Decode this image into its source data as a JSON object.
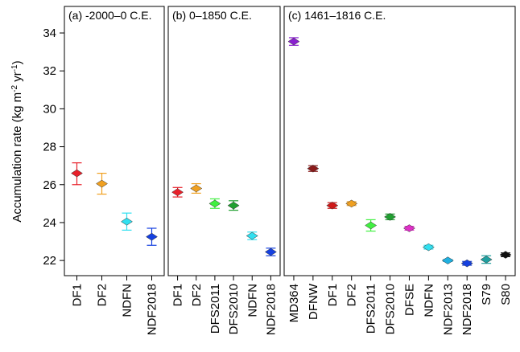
{
  "y_axis_label": {
    "main": "Accumulation rate (kg m",
    "sup1": "-2",
    "mid": " yr",
    "sup2": "-1",
    "end": ")"
  },
  "chart_data": [
    {
      "type": "errorbar",
      "title": "(a) -2000–0 C.E.",
      "ylim": [
        21.2,
        35.4
      ],
      "yticks": [
        22,
        24,
        26,
        28,
        30,
        32,
        34
      ],
      "categories": [
        "DF1",
        "DF2",
        "NDFN",
        "NDF2018"
      ],
      "values": [
        26.6,
        26.05,
        24.05,
        23.25
      ],
      "lower": [
        26.0,
        25.5,
        23.6,
        22.8
      ],
      "upper": [
        27.15,
        26.6,
        24.5,
        23.7
      ],
      "colors": [
        "#e8202a",
        "#f0a020",
        "#30e0f0",
        "#1540e0"
      ]
    },
    {
      "type": "errorbar",
      "title": "(b)  0–1850 C.E.",
      "ylim": [
        21.2,
        35.4
      ],
      "categories": [
        "DF1",
        "DF2",
        "DFS2011",
        "DFS2010",
        "NDFN",
        "NDF2018"
      ],
      "values": [
        25.6,
        25.8,
        25.0,
        24.9,
        23.3,
        22.45
      ],
      "lower": [
        25.35,
        25.55,
        24.75,
        24.65,
        23.1,
        22.25
      ],
      "upper": [
        25.85,
        26.05,
        25.25,
        25.15,
        23.5,
        22.65
      ],
      "colors": [
        "#e8202a",
        "#f0a020",
        "#40f040",
        "#20a030",
        "#30e0f0",
        "#1540e0"
      ]
    },
    {
      "type": "errorbar",
      "title": "(c) 1461–1816 C.E.",
      "ylim": [
        21.2,
        35.4
      ],
      "categories": [
        "MD364",
        "DFNW",
        "DF1",
        "DF2",
        "DFS2011",
        "DFS2010",
        "DFSE",
        "NDFN",
        "NDF2013",
        "NDF2018",
        "S79",
        "S80"
      ],
      "values": [
        33.55,
        26.85,
        24.9,
        25.0,
        23.85,
        24.3,
        23.7,
        22.7,
        22.0,
        21.85,
        22.05,
        22.3
      ],
      "lower": [
        33.35,
        26.7,
        24.75,
        24.9,
        23.55,
        24.15,
        23.6,
        22.6,
        21.95,
        21.75,
        21.85,
        22.2
      ],
      "upper": [
        33.75,
        27.0,
        25.05,
        25.1,
        24.15,
        24.45,
        23.8,
        22.8,
        22.05,
        21.95,
        22.25,
        22.4
      ],
      "colors": [
        "#8a20d0",
        "#8b1a1a",
        "#d01818",
        "#f0a020",
        "#40f040",
        "#20a030",
        "#e030c8",
        "#30e0f0",
        "#20b0e0",
        "#1540e0",
        "#20a0a0",
        "#101010"
      ]
    }
  ]
}
